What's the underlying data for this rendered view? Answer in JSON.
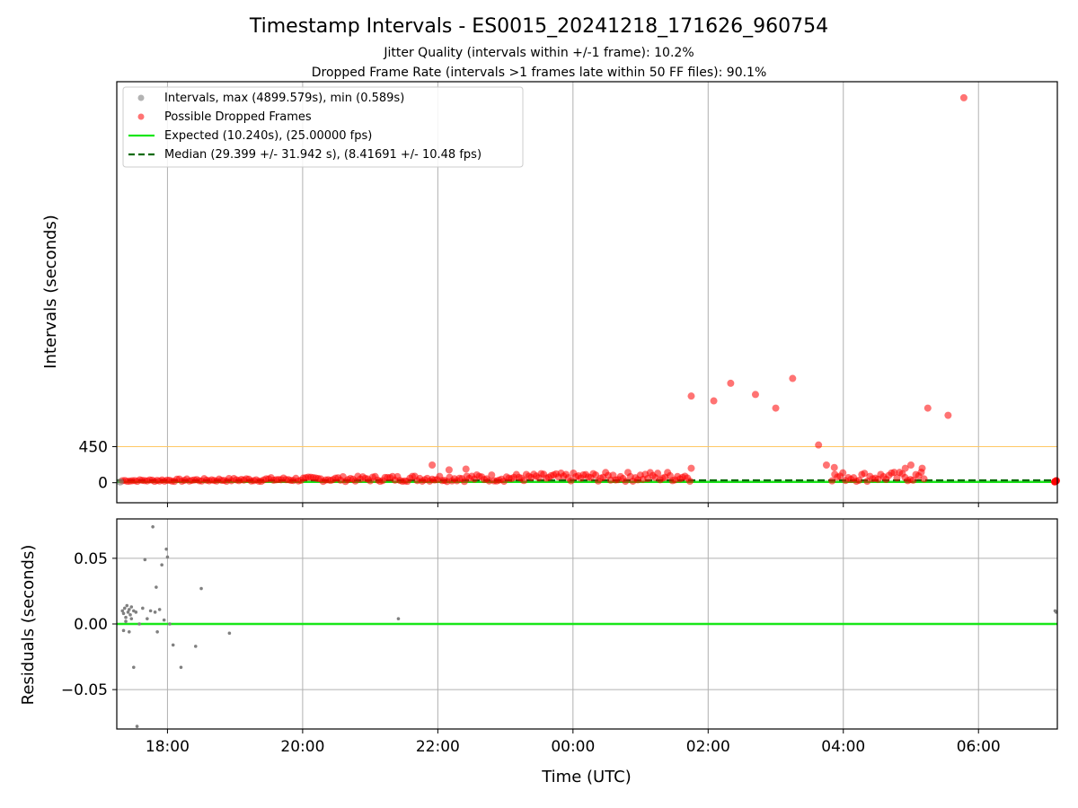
{
  "chart_data": [
    {
      "type": "scatter",
      "title": "Timestamp Intervals - ES0015_20241218_171626_960754",
      "subtitle_lines": [
        "Jitter Quality (intervals within +/-1 frame): 10.2%",
        "Dropped Frame Rate (intervals >1 frames late within 50 FF files): 90.1%"
      ],
      "xlabel": "",
      "ylabel": "Intervals (seconds)",
      "x_axis_type": "time",
      "xlim": [
        "17:15",
        "07:10"
      ],
      "x_tick_labels": [
        "18:00",
        "20:00",
        "22:00",
        "00:00",
        "02:00",
        "04:00",
        "06:00"
      ],
      "ylim": [
        -250,
        5000
      ],
      "y_tick_values": [
        0,
        450
      ],
      "y_tick_labels": [
        "0",
        "450"
      ],
      "grid": "x",
      "legend_position": "top-left",
      "legend": [
        "Intervals, max (4899.579s), min (0.589s)",
        "Possible Dropped Frames",
        "Expected (10.240s), (25.00000 fps)",
        "Median (29.399 +/- 31.942 s), (8.41691 +/- 10.48 fps)"
      ],
      "reference_lines": [
        {
          "y": 450,
          "color": "#ffc864"
        },
        {
          "y": 10.24,
          "color": "#19e619"
        },
        {
          "y": 29.399,
          "color": "#0a6b0a"
        }
      ],
      "series": [
        {
          "name": "Possible Dropped Frames",
          "color": "#ff0000",
          "points": [
            {
              "x": "01:45",
              "y": 1080
            },
            {
              "x": "02:05",
              "y": 1020
            },
            {
              "x": "02:20",
              "y": 1240
            },
            {
              "x": "02:42",
              "y": 1100
            },
            {
              "x": "03:00",
              "y": 930
            },
            {
              "x": "03:15",
              "y": 1300
            },
            {
              "x": "03:38",
              "y": 470
            },
            {
              "x": "03:45",
              "y": 220
            },
            {
              "x": "03:52",
              "y": 190
            },
            {
              "x": "05:15",
              "y": 930
            },
            {
              "x": "05:33",
              "y": 840
            },
            {
              "x": "05:47",
              "y": 4800
            },
            {
              "x": "21:55",
              "y": 220
            },
            {
              "x": "22:10",
              "y": 160
            },
            {
              "x": "22:25",
              "y": 170
            },
            {
              "x": "01:45",
              "y": 180
            },
            {
              "x": "04:55",
              "y": 180
            },
            {
              "x": "05:00",
              "y": 220
            },
            {
              "x": "05:10",
              "y": 180
            }
          ]
        }
      ]
    },
    {
      "type": "scatter",
      "title": "",
      "xlabel": "Time (UTC)",
      "ylabel": "Residuals (seconds)",
      "x_axis_type": "time",
      "xlim": [
        "17:15",
        "07:10"
      ],
      "x_tick_labels": [
        "18:00",
        "20:00",
        "22:00",
        "00:00",
        "02:00",
        "04:00",
        "06:00"
      ],
      "ylim": [
        -0.08,
        0.08
      ],
      "y_tick_values": [
        -0.05,
        0.0,
        0.05
      ],
      "y_tick_labels": [
        "−0.05",
        "0.00",
        "0.05"
      ],
      "grid": "both",
      "reference_lines": [
        {
          "y": 0.0,
          "color": "#19e619"
        }
      ],
      "series": [
        {
          "name": "",
          "color": "#808080",
          "points": [
            {
              "x": "17:20",
              "y": 0.01
            },
            {
              "x": "17:21",
              "y": 0.008
            },
            {
              "x": "17:22",
              "y": 0.012
            },
            {
              "x": "17:23",
              "y": 0.005
            },
            {
              "x": "17:24",
              "y": 0.014
            },
            {
              "x": "17:25",
              "y": 0.009
            },
            {
              "x": "17:26",
              "y": 0.011
            },
            {
              "x": "17:27",
              "y": 0.007
            },
            {
              "x": "17:28",
              "y": 0.013
            },
            {
              "x": "17:30",
              "y": 0.01
            },
            {
              "x": "17:21",
              "y": -0.005
            },
            {
              "x": "17:23",
              "y": 0.002
            },
            {
              "x": "17:26",
              "y": -0.006
            },
            {
              "x": "17:28",
              "y": 0.004
            },
            {
              "x": "17:30",
              "y": -0.033
            },
            {
              "x": "17:32",
              "y": 0.009
            },
            {
              "x": "17:33",
              "y": -0.078
            },
            {
              "x": "17:35",
              "y": 0.0
            },
            {
              "x": "17:38",
              "y": 0.012
            },
            {
              "x": "17:40",
              "y": 0.049
            },
            {
              "x": "17:42",
              "y": 0.004
            },
            {
              "x": "17:45",
              "y": 0.01
            },
            {
              "x": "17:47",
              "y": 0.074
            },
            {
              "x": "17:49",
              "y": 0.009
            },
            {
              "x": "17:50",
              "y": 0.028
            },
            {
              "x": "17:51",
              "y": -0.006
            },
            {
              "x": "17:53",
              "y": 0.011
            },
            {
              "x": "17:55",
              "y": 0.045
            },
            {
              "x": "17:57",
              "y": 0.003
            },
            {
              "x": "17:59",
              "y": 0.057
            },
            {
              "x": "18:00",
              "y": 0.051
            },
            {
              "x": "18:02",
              "y": 0.0
            },
            {
              "x": "18:05",
              "y": -0.016
            },
            {
              "x": "18:12",
              "y": -0.033
            },
            {
              "x": "18:25",
              "y": -0.017
            },
            {
              "x": "18:30",
              "y": 0.027
            },
            {
              "x": "18:55",
              "y": -0.007
            },
            {
              "x": "21:25",
              "y": 0.004
            },
            {
              "x": "07:08",
              "y": 0.01
            },
            {
              "x": "07:09",
              "y": 0.009
            }
          ]
        }
      ]
    }
  ]
}
